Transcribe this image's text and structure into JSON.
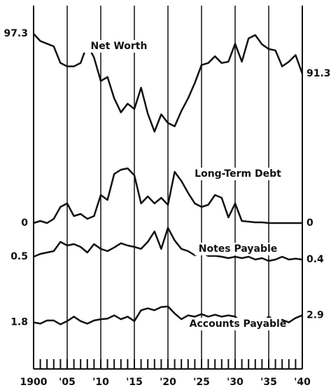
{
  "chart_data": {
    "type": "line",
    "x": [
      1900,
      1901,
      1902,
      1903,
      1904,
      1905,
      1906,
      1907,
      1908,
      1909,
      1910,
      1911,
      1912,
      1913,
      1914,
      1915,
      1916,
      1917,
      1918,
      1919,
      1920,
      1921,
      1922,
      1923,
      1924,
      1925,
      1926,
      1927,
      1928,
      1929,
      1930,
      1931,
      1932,
      1933,
      1934,
      1935,
      1936,
      1937,
      1938,
      1939,
      1940
    ],
    "xlim": [
      1900,
      1940
    ],
    "xticks": [
      {
        "value": 1900,
        "label": "1900"
      },
      {
        "value": 1905,
        "label": "'05"
      },
      {
        "value": 1910,
        "label": "'10"
      },
      {
        "value": 1915,
        "label": "'15"
      },
      {
        "value": 1920,
        "label": "'20"
      },
      {
        "value": 1925,
        "label": "'25"
      },
      {
        "value": 1930,
        "label": "'30"
      },
      {
        "value": 1935,
        "label": "'35"
      },
      {
        "value": 1940,
        "label": "'40"
      }
    ],
    "grid": true,
    "series": [
      {
        "name": "Net Worth",
        "color": "#111111",
        "ylim": [
          78,
          100
        ],
        "values": [
          97.3,
          96.2,
          95.8,
          95.4,
          92.9,
          92.4,
          92.4,
          92.9,
          95.7,
          93.7,
          90.2,
          90.8,
          87.6,
          85.5,
          86.8,
          86.0,
          89.2,
          85.3,
          82.6,
          85.2,
          83.9,
          83.4,
          85.7,
          87.6,
          89.9,
          92.6,
          92.9,
          93.9,
          92.9,
          93.1,
          95.8,
          93.1,
          96.6,
          97.1,
          95.7,
          95.0,
          94.8,
          92.4,
          93.1,
          94.1,
          91.3
        ]
      },
      {
        "name": "Long-Term Debt",
        "color": "#111111",
        "ylim": [
          0,
          9
        ],
        "values": [
          0,
          0.3,
          0,
          0.6,
          2.3,
          2.8,
          1.0,
          1.3,
          0.6,
          1.0,
          4.0,
          3.3,
          7.0,
          7.6,
          7.8,
          6.8,
          2.8,
          3.8,
          2.8,
          3.6,
          2.6,
          7.3,
          6.0,
          4.3,
          2.8,
          2.3,
          2.6,
          4.0,
          3.6,
          0.8,
          2.8,
          0.3,
          0.2,
          0.1,
          0.1,
          0,
          0,
          0,
          0,
          0,
          0
        ]
      },
      {
        "name": "Notes Payable",
        "color": "#111111",
        "ylim": [
          0.2,
          1.7
        ],
        "values": [
          0.5,
          0.6,
          0.65,
          0.7,
          1.03,
          0.9,
          0.95,
          0.85,
          0.65,
          0.95,
          0.78,
          0.7,
          0.83,
          0.98,
          0.9,
          0.85,
          0.78,
          1.03,
          1.4,
          0.78,
          1.53,
          1.08,
          0.78,
          0.7,
          0.55,
          0.65,
          0.53,
          0.53,
          0.5,
          0.45,
          0.5,
          0.45,
          0.5,
          0.4,
          0.45,
          0.35,
          0.4,
          0.5,
          0.4,
          0.43,
          0.4
        ]
      },
      {
        "name": "Accounts Payable",
        "color": "#111111",
        "ylim": [
          0,
          6
        ],
        "values": [
          1.8,
          1.6,
          2.1,
          2.1,
          1.5,
          2.0,
          2.7,
          2.0,
          1.6,
          2.1,
          2.3,
          2.4,
          2.9,
          2.3,
          2.7,
          2.0,
          3.7,
          4.0,
          3.7,
          4.2,
          4.3,
          3.2,
          2.3,
          2.9,
          2.7,
          3.1,
          2.7,
          3.0,
          2.7,
          2.9,
          2.7,
          1.8,
          1.6,
          2.3,
          1.8,
          2.7,
          2.0,
          2.2,
          1.8,
          2.5,
          2.9
        ]
      }
    ]
  }
}
